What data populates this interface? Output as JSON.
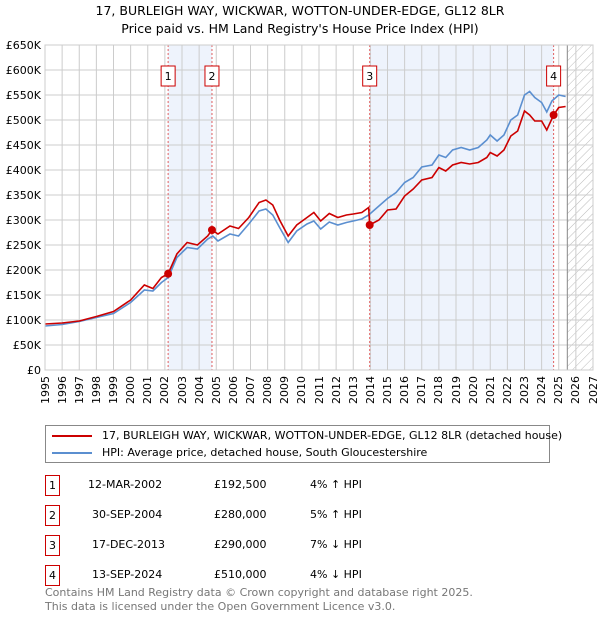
{
  "chart_data": {
    "type": "line",
    "title": "17, BURLEIGH WAY, WICKWAR, WOTTON-UNDER-EDGE, GL12 8LR",
    "subtitle": "Price paid vs. HM Land Registry's House Price Index (HPI)",
    "xlim": [
      1995,
      2027
    ],
    "ylim": [
      0,
      650000
    ],
    "x_ticks": [
      "1995",
      "1996",
      "1997",
      "1998",
      "1999",
      "2000",
      "2001",
      "2002",
      "2003",
      "2004",
      "2005",
      "2006",
      "2007",
      "2008",
      "2009",
      "2010",
      "2011",
      "2012",
      "2013",
      "2014",
      "2015",
      "2016",
      "2017",
      "2018",
      "2019",
      "2020",
      "2021",
      "2022",
      "2023",
      "2024",
      "2025",
      "2026",
      "2027"
    ],
    "y_ticks": [
      "£0",
      "£50K",
      "£100K",
      "£150K",
      "£200K",
      "£250K",
      "£300K",
      "£350K",
      "£400K",
      "£450K",
      "£500K",
      "£550K",
      "£600K",
      "£650K"
    ],
    "grid": true,
    "future_hatch_from": 2025.5,
    "series": [
      {
        "name": "17, BURLEIGH WAY, WICKWAR, WOTTON-UNDER-EDGE, GL12 8LR (detached house)",
        "color": "#cc0000",
        "points": [
          [
            1995,
            92
          ],
          [
            1996,
            94
          ],
          [
            1997,
            98
          ],
          [
            1998,
            107
          ],
          [
            1999,
            117
          ],
          [
            2000,
            140
          ],
          [
            2000.8,
            170
          ],
          [
            2001.3,
            163
          ],
          [
            2001.8,
            185
          ],
          [
            2002.19,
            192.5
          ],
          [
            2002.7,
            232
          ],
          [
            2003.3,
            255
          ],
          [
            2003.9,
            250
          ],
          [
            2004.5,
            268
          ],
          [
            2004.75,
            280
          ],
          [
            2005.1,
            272
          ],
          [
            2005.8,
            288
          ],
          [
            2006.3,
            283
          ],
          [
            2006.9,
            305
          ],
          [
            2007.5,
            335
          ],
          [
            2007.9,
            340
          ],
          [
            2008.3,
            330
          ],
          [
            2008.7,
            300
          ],
          [
            2009.2,
            268
          ],
          [
            2009.7,
            290
          ],
          [
            2010.3,
            305
          ],
          [
            2010.7,
            315
          ],
          [
            2011.1,
            298
          ],
          [
            2011.6,
            313
          ],
          [
            2012.1,
            305
          ],
          [
            2012.6,
            310
          ],
          [
            2013.0,
            312
          ],
          [
            2013.5,
            315
          ],
          [
            2013.9,
            325
          ],
          [
            2013.96,
            290
          ],
          [
            2014.5,
            300
          ],
          [
            2015.0,
            320
          ],
          [
            2015.5,
            322
          ],
          [
            2016.0,
            348
          ],
          [
            2016.5,
            362
          ],
          [
            2017.0,
            380
          ],
          [
            2017.6,
            385
          ],
          [
            2018.0,
            405
          ],
          [
            2018.4,
            398
          ],
          [
            2018.8,
            410
          ],
          [
            2019.3,
            415
          ],
          [
            2019.8,
            412
          ],
          [
            2020.3,
            415
          ],
          [
            2020.8,
            425
          ],
          [
            2021.0,
            435
          ],
          [
            2021.4,
            428
          ],
          [
            2021.8,
            440
          ],
          [
            2022.2,
            468
          ],
          [
            2022.6,
            478
          ],
          [
            2023.0,
            518
          ],
          [
            2023.3,
            510
          ],
          [
            2023.6,
            498
          ],
          [
            2024.0,
            498
          ],
          [
            2024.3,
            480
          ],
          [
            2024.7,
            510
          ],
          [
            2025.0,
            525
          ],
          [
            2025.4,
            527
          ]
        ]
      },
      {
        "name": "HPI: Average price, detached house, South Gloucestershire",
        "color": "#5b8fd0",
        "points": [
          [
            1995,
            88
          ],
          [
            1996,
            91
          ],
          [
            1997,
            97
          ],
          [
            1998,
            105
          ],
          [
            1999,
            113
          ],
          [
            2000,
            135
          ],
          [
            2000.8,
            160
          ],
          [
            2001.3,
            158
          ],
          [
            2001.8,
            175
          ],
          [
            2002.2,
            185
          ],
          [
            2002.7,
            225
          ],
          [
            2003.3,
            245
          ],
          [
            2003.9,
            242
          ],
          [
            2004.5,
            262
          ],
          [
            2004.8,
            268
          ],
          [
            2005.1,
            258
          ],
          [
            2005.8,
            272
          ],
          [
            2006.3,
            268
          ],
          [
            2006.9,
            292
          ],
          [
            2007.5,
            318
          ],
          [
            2007.9,
            322
          ],
          [
            2008.3,
            310
          ],
          [
            2008.7,
            285
          ],
          [
            2009.2,
            255
          ],
          [
            2009.7,
            278
          ],
          [
            2010.3,
            292
          ],
          [
            2010.7,
            298
          ],
          [
            2011.1,
            282
          ],
          [
            2011.6,
            296
          ],
          [
            2012.1,
            290
          ],
          [
            2012.6,
            295
          ],
          [
            2013.0,
            298
          ],
          [
            2013.5,
            302
          ],
          [
            2013.9,
            310
          ],
          [
            2014.5,
            328
          ],
          [
            2015.0,
            343
          ],
          [
            2015.5,
            355
          ],
          [
            2016.0,
            375
          ],
          [
            2016.5,
            385
          ],
          [
            2017.0,
            406
          ],
          [
            2017.6,
            410
          ],
          [
            2018.0,
            430
          ],
          [
            2018.4,
            425
          ],
          [
            2018.8,
            440
          ],
          [
            2019.3,
            445
          ],
          [
            2019.8,
            440
          ],
          [
            2020.3,
            445
          ],
          [
            2020.8,
            460
          ],
          [
            2021.0,
            470
          ],
          [
            2021.4,
            458
          ],
          [
            2021.8,
            470
          ],
          [
            2022.2,
            500
          ],
          [
            2022.6,
            510
          ],
          [
            2023.0,
            550
          ],
          [
            2023.3,
            557
          ],
          [
            2023.6,
            545
          ],
          [
            2024.0,
            535
          ],
          [
            2024.3,
            516
          ],
          [
            2024.6,
            538
          ],
          [
            2025.0,
            550
          ],
          [
            2025.4,
            547
          ]
        ]
      }
    ],
    "sales": [
      {
        "label": "1",
        "x": 2002.19,
        "value": 192500
      },
      {
        "label": "2",
        "x": 2004.75,
        "value": 280000
      },
      {
        "label": "3",
        "x": 2013.96,
        "value": 290000
      },
      {
        "label": "4",
        "x": 2024.7,
        "value": 510000
      }
    ],
    "shaded_ranges": [
      [
        2002.19,
        2004.75
      ],
      [
        2013.96,
        2024.7
      ]
    ]
  },
  "legend": {
    "property": "17, BURLEIGH WAY, WICKWAR, WOTTON-UNDER-EDGE, GL12 8LR (detached house)",
    "hpi": "HPI: Average price, detached house, South Gloucestershire"
  },
  "transactions": [
    {
      "num": "1",
      "date": "12-MAR-2002",
      "price": "£192,500",
      "hpi": "4% ↑ HPI"
    },
    {
      "num": "2",
      "date": "30-SEP-2004",
      "price": "£280,000",
      "hpi": "5% ↑ HPI"
    },
    {
      "num": "3",
      "date": "17-DEC-2013",
      "price": "£290,000",
      "hpi": "7% ↓ HPI"
    },
    {
      "num": "4",
      "date": "13-SEP-2024",
      "price": "£510,000",
      "hpi": "4% ↓ HPI"
    }
  ],
  "footer": {
    "line1": "Contains HM Land Registry data © Crown copyright and database right 2025.",
    "line2": "This data is licensed under the Open Government Licence v3.0."
  }
}
